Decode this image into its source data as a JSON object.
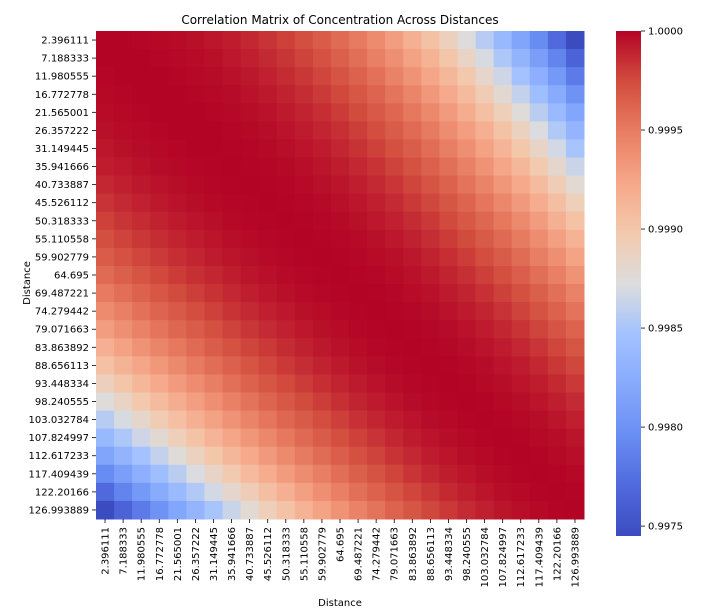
{
  "chart_data": {
    "type": "heatmap",
    "title": "Correlation Matrix of Concentration Across Distances",
    "xlabel": "Distance",
    "ylabel": "Distance",
    "labels": [
      "2.396111",
      "7.188333",
      "11.980555",
      "16.772778",
      "21.565001",
      "26.357222",
      "31.149445",
      "35.941666",
      "40.733887",
      "45.526112",
      "50.318333",
      "55.110558",
      "59.902779",
      "64.695",
      "69.487221",
      "74.279442",
      "79.071663",
      "83.863892",
      "88.656113",
      "93.448334",
      "98.240555",
      "103.032784",
      "107.824997",
      "112.617233",
      "117.409439",
      "122.20166",
      "126.993889"
    ],
    "colormap": "coolwarm",
    "vmin": 0.99745,
    "vmax": 1.0,
    "colorbar_ticks": [
      "1.0000",
      "0.9995",
      "0.9990",
      "0.9985",
      "0.9980",
      "0.9975"
    ],
    "colorbar_tick_values": [
      1.0,
      0.9995,
      0.999,
      0.9985,
      0.998,
      0.9975
    ],
    "corr_rule": "value(i,j) = 1 - 0.00255 * ((i - j) / 26)^2 * (0.3 + 0.7 * max(i, j) / 26), where i and j are the row and column indices; approximates the pattern shown"
  }
}
